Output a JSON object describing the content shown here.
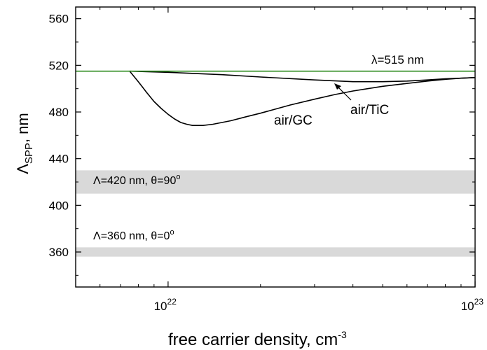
{
  "chart_data": {
    "type": "line",
    "xlabel": {
      "main": "free carrier density, cm",
      "sup": "-3"
    },
    "ylabel": {
      "main": "Λ",
      "sub": "SPP",
      "tail": ", nm"
    },
    "xscale": "log",
    "xlim": [
      5e+21,
      1e+23
    ],
    "ylim": [
      330,
      570
    ],
    "yticks": [
      {
        "value": 360,
        "label": "360"
      },
      {
        "value": 400,
        "label": "400"
      },
      {
        "value": 440,
        "label": "440"
      },
      {
        "value": 480,
        "label": "480"
      },
      {
        "value": 520,
        "label": "520"
      },
      {
        "value": 560,
        "label": "560"
      }
    ],
    "xticks": [
      {
        "value": 1e+22,
        "base": "10",
        "exp": "22"
      },
      {
        "value": 1e+23,
        "base": "10",
        "exp": "23"
      }
    ],
    "grid": false,
    "series": [
      {
        "name": "air/GC",
        "color": "#000000",
        "x": [
          7.5e+21,
          8e+21,
          8.5e+21,
          9e+21,
          9.5e+21,
          1e+22,
          1.05e+22,
          1.1e+22,
          1.15e+22,
          1.2e+22,
          1.3e+22,
          1.4e+22,
          1.6e+22,
          1.8e+22,
          2e+22,
          2.5e+22,
          3e+22,
          3.5e+22,
          4e+22,
          5e+22,
          6e+22,
          7e+22,
          8e+22,
          9e+22,
          1e+23
        ],
        "y": [
          515,
          506,
          497,
          489,
          483,
          478,
          474,
          471,
          469.5,
          468.5,
          468.5,
          469.5,
          472.5,
          476,
          479,
          486,
          491,
          495,
          498,
          502,
          504.5,
          506.5,
          508,
          509,
          509.5
        ]
      },
      {
        "name": "air/TiC",
        "color": "#000000",
        "x": [
          7.5e+21,
          1e+22,
          1.5e+22,
          2e+22,
          3e+22,
          4e+22,
          5e+22,
          6e+22,
          7e+22,
          8e+22,
          9e+22,
          1e+23
        ],
        "y": [
          515,
          514,
          512,
          510,
          507.5,
          506,
          506,
          506.5,
          507.5,
          508.5,
          509,
          509.5
        ]
      },
      {
        "name": "λ=515 nm",
        "color": "#2e8b1f",
        "x": [
          5e+21,
          1e+23
        ],
        "y": [
          515,
          515
        ]
      }
    ],
    "bands": [
      {
        "label": {
          "a": "Λ=420 nm, ",
          "b": "θ=90",
          "c": "o"
        },
        "ymin": 410,
        "ymax": 430,
        "color": "#d9d9d9"
      },
      {
        "label": {
          "a": "Λ=360 nm, ",
          "b": "θ=0",
          "c": "o"
        },
        "ymin": 356,
        "ymax": 364,
        "color": "#d9d9d9"
      }
    ],
    "annotations": [
      {
        "text": "λ=515 nm",
        "color": "#2e8b1f"
      },
      {
        "text": "air/GC",
        "color": "#000000"
      },
      {
        "text": "air/TiC",
        "color": "#000000"
      }
    ]
  }
}
